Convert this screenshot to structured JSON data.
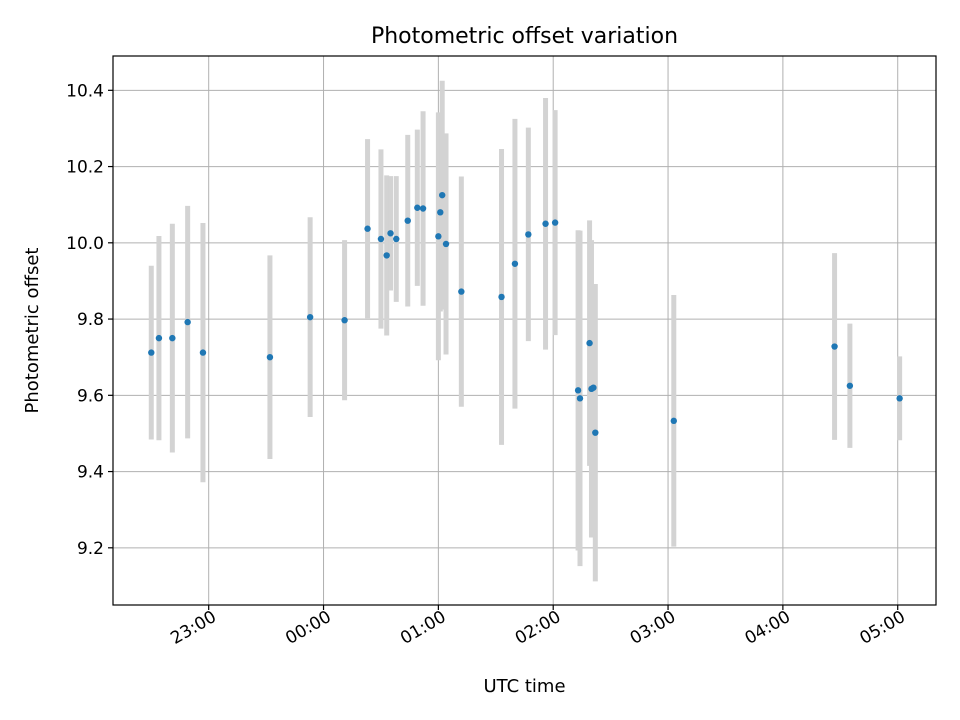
{
  "chart_data": {
    "type": "scatter",
    "title": "Photometric offset variation",
    "xlabel": "UTC time",
    "ylabel": "Photometric offset",
    "x_axis": {
      "kind": "time",
      "start": "22:10",
      "end": "05:20",
      "ticks": [
        "23:00",
        "00:00",
        "01:00",
        "02:00",
        "03:00",
        "04:00",
        "05:00"
      ]
    },
    "ylim": [
      9.05,
      10.49
    ],
    "yticks": [
      "9.2",
      "9.4",
      "9.6",
      "9.8",
      "10.0",
      "10.2",
      "10.4"
    ],
    "grid": true,
    "colors": {
      "points": "#1f77b4",
      "error_bars": "#d3d3d3",
      "grid": "#b0b0b0"
    },
    "points": [
      {
        "t": "22:30",
        "y": 9.712,
        "err": 0.228
      },
      {
        "t": "22:34",
        "y": 9.75,
        "err": 0.268
      },
      {
        "t": "22:41",
        "y": 9.75,
        "err": 0.3
      },
      {
        "t": "22:49",
        "y": 9.792,
        "err": 0.305
      },
      {
        "t": "22:57",
        "y": 9.712,
        "err": 0.34
      },
      {
        "t": "23:32",
        "y": 9.7,
        "err": 0.267
      },
      {
        "t": "23:53",
        "y": 9.805,
        "err": 0.262
      },
      {
        "t": "00:11",
        "y": 9.797,
        "err": 0.21
      },
      {
        "t": "00:23",
        "y": 10.037,
        "err": 0.235
      },
      {
        "t": "00:30",
        "y": 10.01,
        "err": 0.235
      },
      {
        "t": "00:33",
        "y": 9.967,
        "err": 0.21
      },
      {
        "t": "00:35",
        "y": 10.025,
        "err": 0.15
      },
      {
        "t": "00:38",
        "y": 10.01,
        "err": 0.165
      },
      {
        "t": "00:44",
        "y": 10.058,
        "err": 0.225
      },
      {
        "t": "00:49",
        "y": 10.092,
        "err": 0.205
      },
      {
        "t": "00:52",
        "y": 10.09,
        "err": 0.255
      },
      {
        "t": "01:00",
        "y": 10.017,
        "err": 0.325
      },
      {
        "t": "01:01",
        "y": 10.08,
        "err": 0.26
      },
      {
        "t": "01:02",
        "y": 10.125,
        "err": 0.3
      },
      {
        "t": "01:04",
        "y": 9.997,
        "err": 0.29
      },
      {
        "t": "01:12",
        "y": 9.872,
        "err": 0.302
      },
      {
        "t": "01:33",
        "y": 9.858,
        "err": 0.388
      },
      {
        "t": "01:40",
        "y": 9.945,
        "err": 0.38
      },
      {
        "t": "01:47",
        "y": 10.022,
        "err": 0.28
      },
      {
        "t": "01:56",
        "y": 10.05,
        "err": 0.33
      },
      {
        "t": "02:01",
        "y": 10.053,
        "err": 0.295
      },
      {
        "t": "02:13",
        "y": 9.613,
        "err": 0.42
      },
      {
        "t": "02:14",
        "y": 9.592,
        "err": 0.44
      },
      {
        "t": "02:19",
        "y": 9.737,
        "err": 0.322
      },
      {
        "t": "02:20",
        "y": 9.617,
        "err": 0.39
      },
      {
        "t": "02:21",
        "y": 9.62,
        "err": 0.272
      },
      {
        "t": "02:22",
        "y": 9.502,
        "err": 0.39
      },
      {
        "t": "03:03",
        "y": 9.533,
        "err": 0.33
      },
      {
        "t": "04:27",
        "y": 9.728,
        "err": 0.245
      },
      {
        "t": "04:35",
        "y": 9.625,
        "err": 0.163
      },
      {
        "t": "05:01",
        "y": 9.592,
        "err": 0.11
      }
    ]
  }
}
